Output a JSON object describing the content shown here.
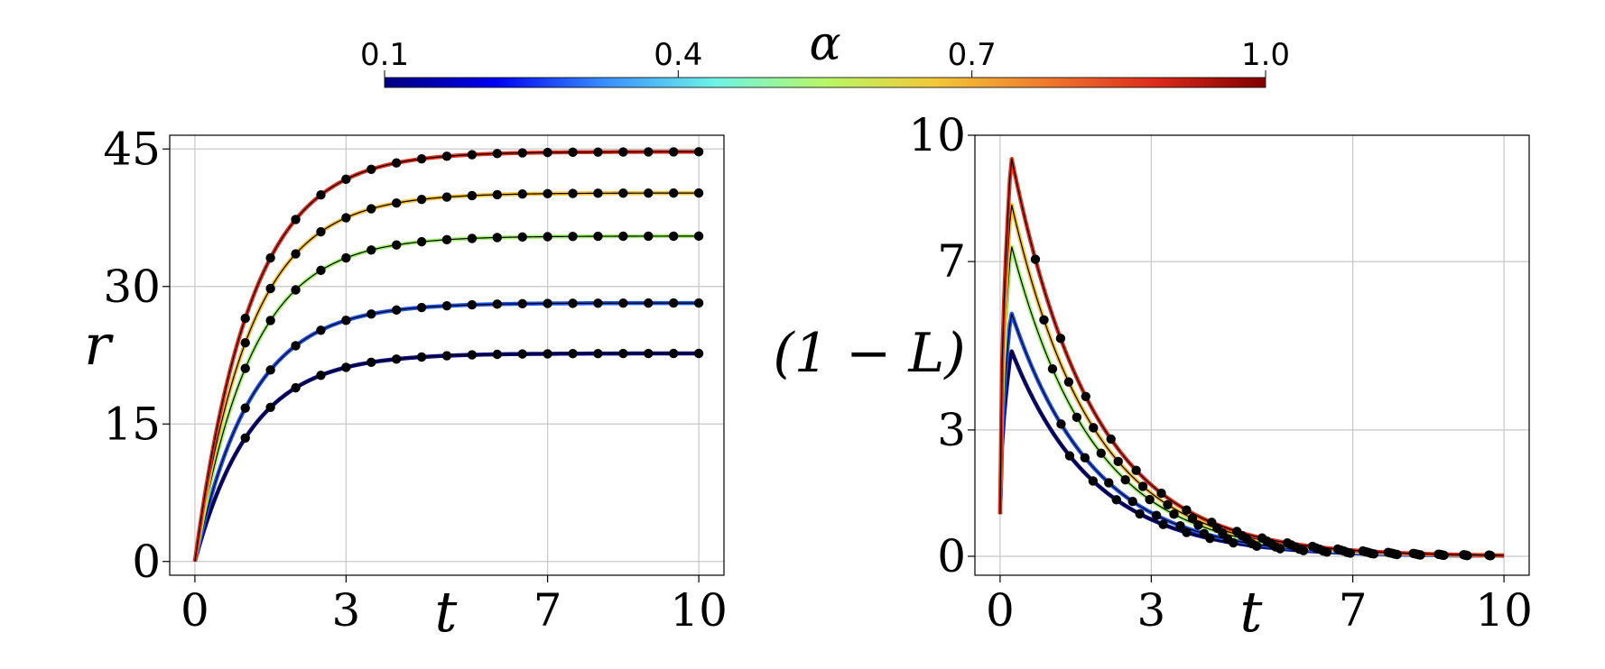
{
  "colorbar": {
    "label": "α",
    "ticks": [
      "0.1",
      "0.4",
      "0.7",
      "1.0"
    ],
    "tick_values": [
      0.1,
      0.4,
      0.7,
      1.0
    ],
    "range": [
      0.1,
      1.0
    ],
    "colormap": "jet-like",
    "stops": [
      "#00007f",
      "#0000f0",
      "#3a8fff",
      "#6ef2e6",
      "#b8f766",
      "#f2c838",
      "#f07a2e",
      "#dd2a1b",
      "#7f0000"
    ]
  },
  "chart_data": [
    {
      "type": "line",
      "xlabel": "t",
      "ylabel": "r",
      "xlim": [
        -0.5,
        10.5
      ],
      "ylim": [
        -1.5,
        46.5
      ],
      "xticks": [
        0,
        3,
        7,
        10
      ],
      "yticks": [
        0,
        15,
        30,
        45
      ],
      "x_tick_labels": [
        "0",
        "3",
        "7",
        "10"
      ],
      "y_tick_labels": [
        "0",
        "15",
        "30",
        "45"
      ],
      "grid": true,
      "series": [
        {
          "color": "#0a0a80",
          "asymptote": 22.7,
          "rate": 0.9
        },
        {
          "color": "#2255e6",
          "asymptote": 28.2,
          "rate": 0.9
        },
        {
          "color": "#a6f07a",
          "asymptote": 35.5,
          "rate": 0.9
        },
        {
          "color": "#f5c040",
          "asymptote": 40.2,
          "rate": 0.9
        },
        {
          "color": "#dd3320",
          "asymptote": 44.7,
          "rate": 0.9
        }
      ],
      "marker_x": [
        1.0,
        1.5,
        2.0,
        2.5,
        3.0,
        3.5,
        4.0,
        4.5,
        5.0,
        5.5,
        6.0,
        6.5,
        7.0,
        7.5,
        8.0,
        8.5,
        9.0,
        9.5,
        10.0
      ]
    },
    {
      "type": "line",
      "xlabel": "t",
      "ylabel": "(1 − L)",
      "xlim": [
        -0.5,
        10.5
      ],
      "ylim": [
        -0.45,
        10.0
      ],
      "xticks": [
        0,
        3,
        7,
        10
      ],
      "yticks": [
        0,
        3,
        7,
        10
      ],
      "x_tick_labels": [
        "0",
        "3",
        "7",
        "10"
      ],
      "y_tick_labels": [
        "0",
        "3",
        "7",
        "10"
      ],
      "grid": true,
      "series": [
        {
          "color": "#0a0a80",
          "peak": 4.9
        },
        {
          "color": "#2255e6",
          "peak": 5.8
        },
        {
          "color": "#a6f07a",
          "peak": 7.4
        },
        {
          "color": "#f5c040",
          "peak": 8.4
        },
        {
          "color": "#dd3320",
          "peak": 9.5
        }
      ],
      "start_value": 1.0,
      "peak_t": 0.22,
      "decay_rate": 0.62,
      "marker_x": [
        0.7,
        1.2,
        1.7,
        2.2,
        2.7,
        3.2,
        3.7,
        4.2,
        4.7,
        5.2,
        5.7,
        6.2,
        6.7,
        7.2,
        7.7,
        8.2,
        8.7,
        9.2,
        9.7
      ],
      "marker_stagger": 0.17
    }
  ]
}
